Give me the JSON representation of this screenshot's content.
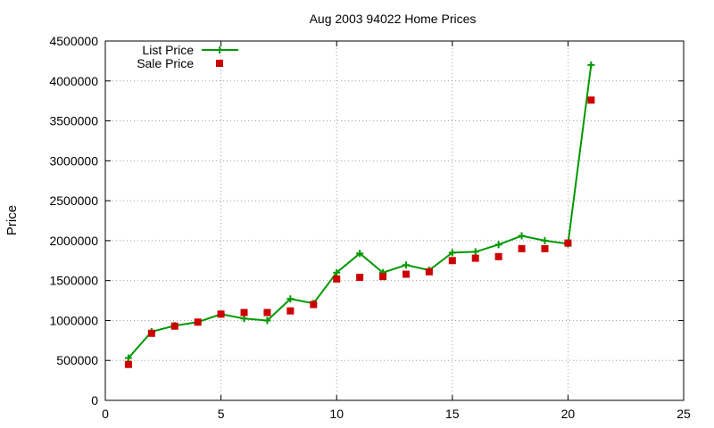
{
  "chart_data": {
    "type": "line",
    "title": "Aug 2003 94022 Home Prices",
    "xlabel": "",
    "ylabel": "Price",
    "xlim": [
      0,
      25
    ],
    "ylim": [
      0,
      4500000
    ],
    "xticks": [
      0,
      5,
      10,
      15,
      20,
      25
    ],
    "yticks": [
      0,
      500000,
      1000000,
      1500000,
      2000000,
      2500000,
      3000000,
      3500000,
      4000000,
      4500000
    ],
    "grid": true,
    "legend_position": "top-left",
    "series": [
      {
        "name": "List Price",
        "style": "line+cross",
        "color": "#009900",
        "x": [
          1,
          2,
          3,
          4,
          5,
          6,
          7,
          8,
          9,
          10,
          11,
          12,
          13,
          14,
          15,
          16,
          17,
          18,
          19,
          20,
          21
        ],
        "y": [
          530000,
          860000,
          935000,
          980000,
          1080000,
          1025000,
          1000000,
          1270000,
          1215000,
          1600000,
          1840000,
          1600000,
          1695000,
          1630000,
          1850000,
          1860000,
          1950000,
          2060000,
          2000000,
          1960000,
          4200000
        ]
      },
      {
        "name": "Sale Price",
        "style": "square",
        "color": "#cc0000",
        "x": [
          1,
          2,
          3,
          4,
          5,
          6,
          7,
          8,
          9,
          10,
          11,
          12,
          13,
          14,
          15,
          16,
          17,
          18,
          19,
          20,
          21
        ],
        "y": [
          450000,
          840000,
          930000,
          980000,
          1080000,
          1100000,
          1100000,
          1120000,
          1200000,
          1520000,
          1540000,
          1550000,
          1580000,
          1610000,
          1750000,
          1780000,
          1800000,
          1900000,
          1900000,
          1970000,
          3760000
        ]
      }
    ]
  }
}
